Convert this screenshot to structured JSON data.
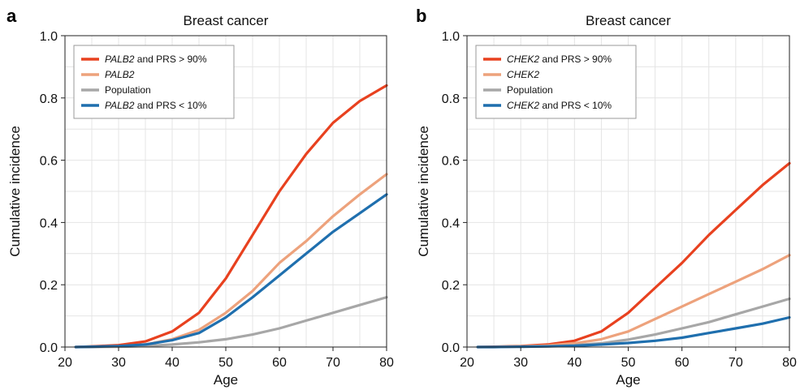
{
  "chart_data": [
    {
      "panel": "a",
      "type": "line",
      "title": "Breast cancer",
      "xlabel": "Age",
      "ylabel": "Cumulative incidence",
      "xlim": [
        20,
        80
      ],
      "ylim": [
        0,
        1
      ],
      "xticks": [
        "20",
        "30",
        "40",
        "50",
        "60",
        "70",
        "80"
      ],
      "yticks": [
        "0.0",
        "0.2",
        "0.4",
        "0.6",
        "0.8",
        "1.0"
      ],
      "grid": true,
      "legend_position": "top-left",
      "x": [
        22,
        25,
        30,
        35,
        40,
        45,
        50,
        55,
        60,
        65,
        70,
        75,
        80
      ],
      "series": [
        {
          "name_italic": "PALB2",
          "name_rest": " and PRS > 90%",
          "color": "#e8411f",
          "values": [
            0.0,
            0.002,
            0.006,
            0.018,
            0.05,
            0.11,
            0.22,
            0.36,
            0.5,
            0.62,
            0.72,
            0.79,
            0.84
          ]
        },
        {
          "name_italic": "PALB2",
          "name_rest": "",
          "color": "#eda27c",
          "values": [
            0.0,
            0.001,
            0.003,
            0.008,
            0.025,
            0.055,
            0.11,
            0.18,
            0.27,
            0.34,
            0.42,
            0.49,
            0.555
          ]
        },
        {
          "name_italic": "",
          "name_rest": "Population",
          "color": "#a7a7a7",
          "values": [
            0.0,
            0.0,
            0.001,
            0.003,
            0.008,
            0.015,
            0.025,
            0.04,
            0.06,
            0.085,
            0.11,
            0.135,
            0.16
          ]
        },
        {
          "name_italic": "PALB2",
          "name_rest": " and PRS < 10%",
          "color": "#1f6fae",
          "values": [
            0.0,
            0.001,
            0.003,
            0.008,
            0.022,
            0.045,
            0.095,
            0.16,
            0.23,
            0.3,
            0.37,
            0.43,
            0.49
          ]
        }
      ]
    },
    {
      "panel": "b",
      "type": "line",
      "title": "Breast cancer",
      "xlabel": "Age",
      "ylabel": "Cumulative incidence",
      "xlim": [
        20,
        80
      ],
      "ylim": [
        0,
        1
      ],
      "xticks": [
        "20",
        "30",
        "40",
        "50",
        "60",
        "70",
        "80"
      ],
      "yticks": [
        "0.0",
        "0.2",
        "0.4",
        "0.6",
        "0.8",
        "1.0"
      ],
      "grid": true,
      "legend_position": "top-left",
      "x": [
        22,
        25,
        30,
        35,
        40,
        45,
        50,
        55,
        60,
        65,
        70,
        75,
        80
      ],
      "series": [
        {
          "name_italic": "CHEK2",
          "name_rest": " and PRS > 90%",
          "color": "#e8411f",
          "values": [
            0.0,
            0.001,
            0.003,
            0.008,
            0.02,
            0.05,
            0.11,
            0.19,
            0.27,
            0.36,
            0.44,
            0.52,
            0.59
          ]
        },
        {
          "name_italic": "CHEK2",
          "name_rest": "",
          "color": "#eda27c",
          "values": [
            0.0,
            0.0,
            0.002,
            0.005,
            0.012,
            0.025,
            0.05,
            0.09,
            0.13,
            0.17,
            0.21,
            0.25,
            0.295
          ]
        },
        {
          "name_italic": "",
          "name_rest": "Population",
          "color": "#a7a7a7",
          "values": [
            0.0,
            0.0,
            0.001,
            0.002,
            0.006,
            0.012,
            0.024,
            0.04,
            0.06,
            0.08,
            0.105,
            0.13,
            0.155
          ]
        },
        {
          "name_italic": "CHEK2",
          "name_rest": " and PRS < 10%",
          "color": "#1f6fae",
          "values": [
            0.0,
            0.0,
            0.001,
            0.002,
            0.004,
            0.008,
            0.013,
            0.02,
            0.03,
            0.045,
            0.06,
            0.075,
            0.095
          ]
        }
      ]
    }
  ]
}
